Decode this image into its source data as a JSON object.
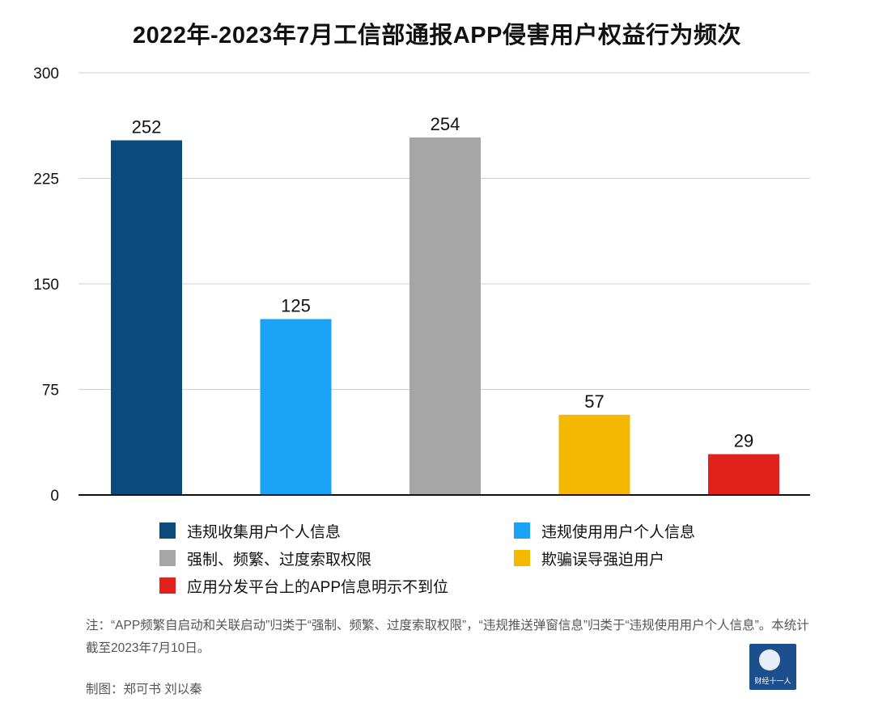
{
  "chart_data": {
    "type": "bar",
    "title": "2022年-2023年7月工信部通报APP侵害用户权益行为频次",
    "categories": [
      "违规收集用户个人信息",
      "违规使用用户个人信息",
      "强制、频繁、过度索取权限",
      "欺骗误导强迫用户",
      "应用分发平台上的APP信息明示不到位"
    ],
    "values": [
      252,
      125,
      254,
      57,
      29
    ],
    "colors": [
      "#0a4a7c",
      "#1aa3f5",
      "#a6a6a6",
      "#f5b800",
      "#e0211c"
    ],
    "ylim": [
      0,
      300
    ],
    "yticks": [
      0,
      75,
      150,
      225,
      300
    ],
    "grid": true,
    "legend_position": "bottom"
  },
  "legend": {
    "items": [
      {
        "label": "违规收集用户个人信息",
        "color": "#0a4a7c"
      },
      {
        "label": "违规使用用户个人信息",
        "color": "#1aa3f5"
      },
      {
        "label": "强制、频繁、过度索取权限",
        "color": "#a6a6a6"
      },
      {
        "label": "欺骗误导强迫用户",
        "color": "#f5b800"
      },
      {
        "label": "应用分发平台上的APP信息明示不到位",
        "color": "#e0211c"
      }
    ]
  },
  "note": "注：“APP频繁自启动和关联启动”归类于“强制、频繁、过度索取权限”，“违规推送弹窗信息”归类于“违规使用用户个人信息”。本统计截至2023年7月10日。",
  "credit": "制图：郑可书 刘以秦",
  "logo": {
    "text": "财经十一人",
    "icon": "globe-runner-logo-icon"
  }
}
